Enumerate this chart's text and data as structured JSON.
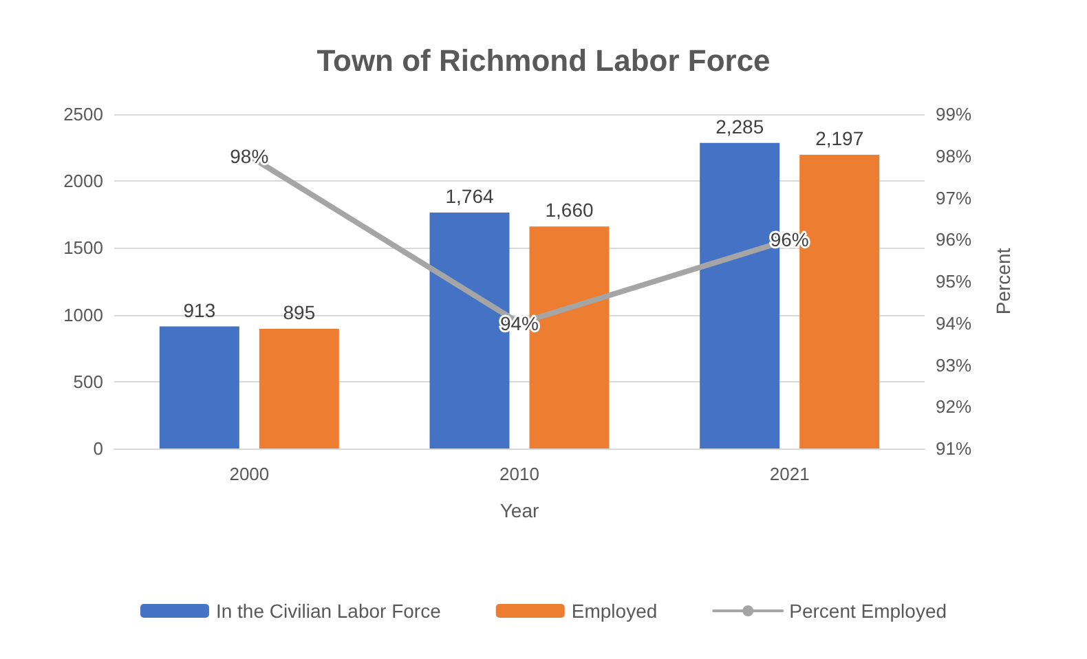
{
  "chart_data": {
    "type": "bar",
    "title": "Town of Richmond Labor Force",
    "xlabel": "Year",
    "y2label": "Percent",
    "categories": [
      "2000",
      "2010",
      "2021"
    ],
    "series": [
      {
        "name": "In the Civilian Labor Force",
        "color": "#4472c4",
        "values": [
          913,
          1764,
          2285
        ],
        "value_labels": [
          "913",
          "1,764",
          "2,285"
        ]
      },
      {
        "name": "Employed",
        "color": "#ed7d31",
        "values": [
          895,
          1660,
          2197
        ],
        "value_labels": [
          "895",
          "1,660",
          "2,197"
        ]
      },
      {
        "name": "Percent Employed",
        "type": "line",
        "axis": "y2",
        "color": "#a5a5a5",
        "values": [
          98,
          94,
          96
        ],
        "value_labels": [
          "98%",
          "94%",
          "96%"
        ]
      }
    ],
    "ylim": [
      0,
      2500
    ],
    "yticks": [
      0,
      500,
      1000,
      1500,
      2000,
      2500
    ],
    "y2lim": [
      91,
      99
    ],
    "y2ticks": [
      {
        "value": 91,
        "label": "91%"
      },
      {
        "value": 92,
        "label": "92%"
      },
      {
        "value": 93,
        "label": "93%"
      },
      {
        "value": 94,
        "label": "94%"
      },
      {
        "value": 95,
        "label": "95%"
      },
      {
        "value": 96,
        "label": "96%"
      },
      {
        "value": 97,
        "label": "97%"
      },
      {
        "value": 98,
        "label": "98%"
      },
      {
        "value": 99,
        "label": "99%"
      }
    ],
    "grid": "y",
    "legend": "bottom",
    "marker": "none"
  }
}
